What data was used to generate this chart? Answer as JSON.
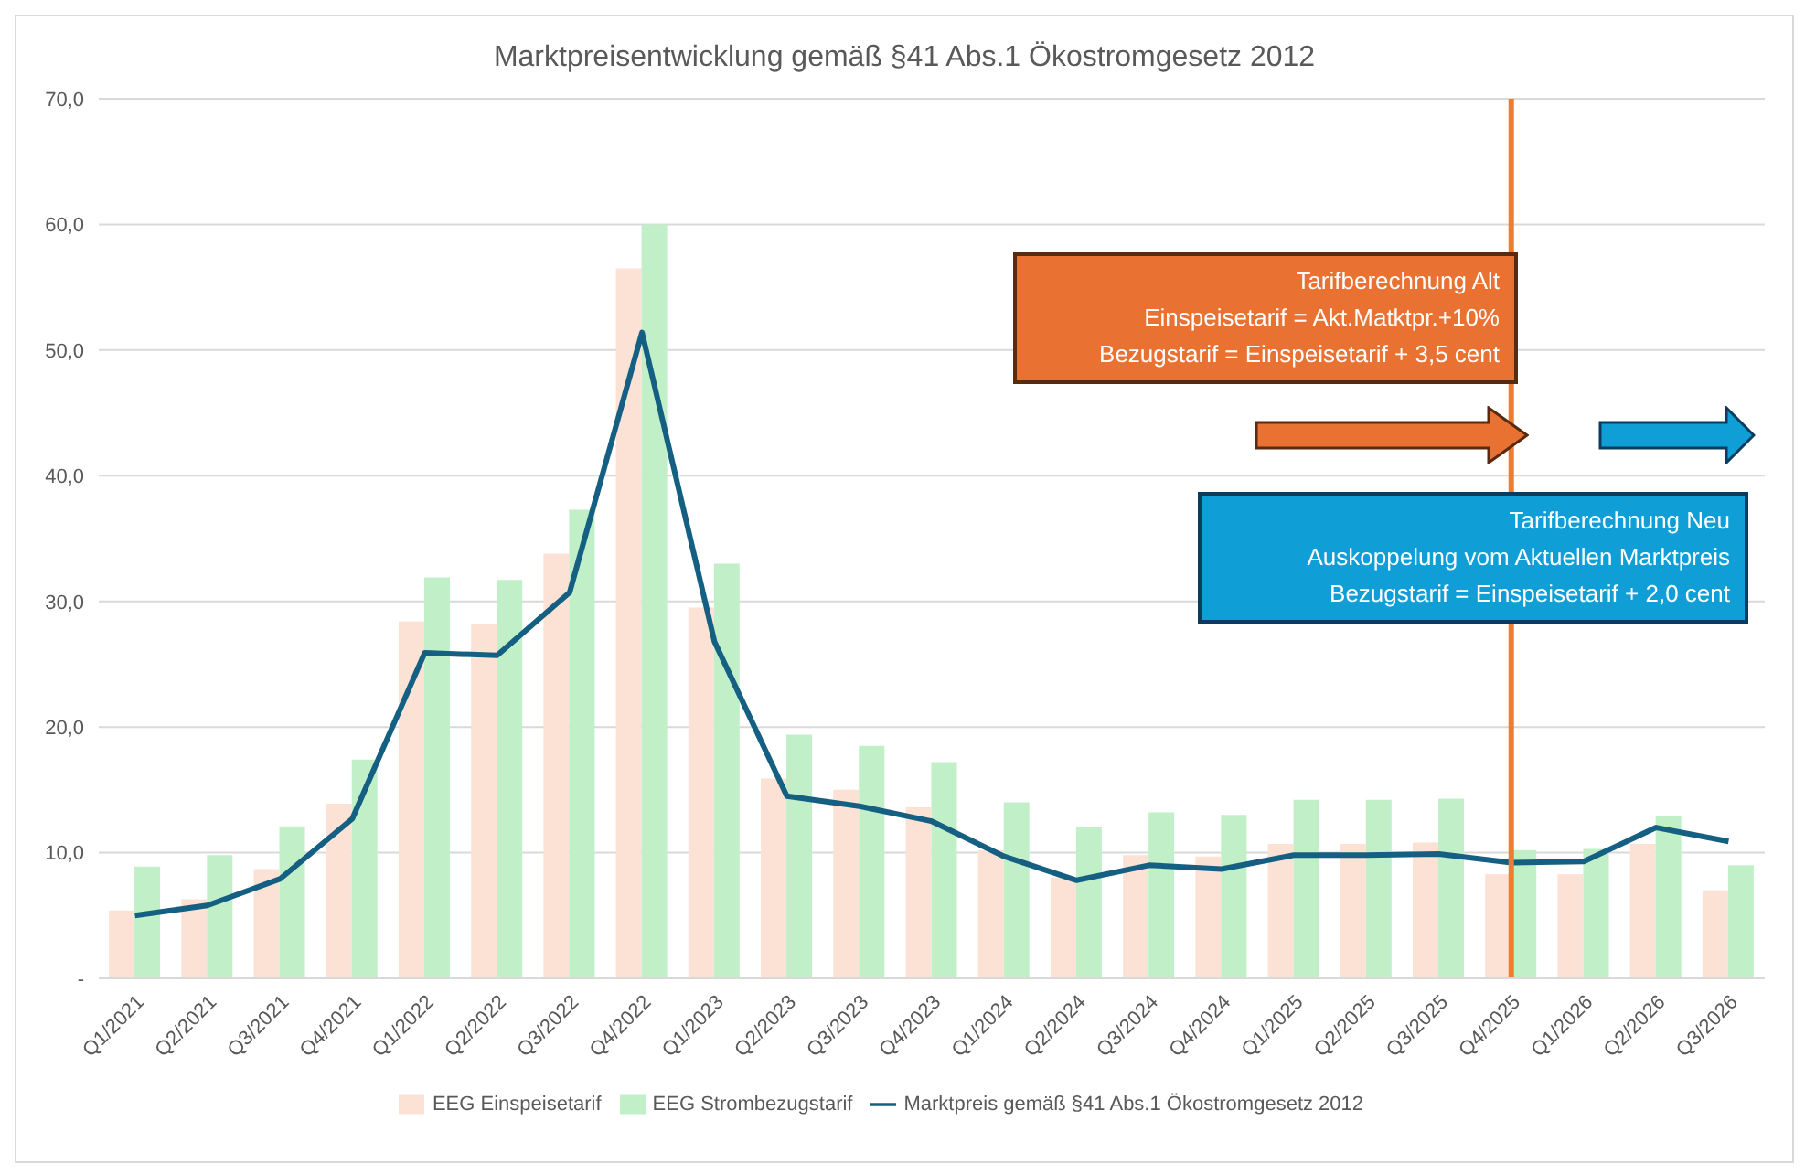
{
  "chart_data": {
    "type": "bar",
    "title": "Marktpreisentwicklung gemäß §41 Abs.1 Ökostromgesetz 2012",
    "categories": [
      "Q1/2021",
      "Q2/2021",
      "Q3/2021",
      "Q4/2021",
      "Q1/2022",
      "Q2/2022",
      "Q3/2022",
      "Q4/2022",
      "Q1/2023",
      "Q2/2023",
      "Q3/2023",
      "Q4/2023",
      "Q1/2024",
      "Q2/2024",
      "Q3/2024",
      "Q4/2024",
      "Q1/2025",
      "Q2/2025",
      "Q3/2025",
      "Q4/2025",
      "Q1/2026",
      "Q2/2026",
      "Q3/2026"
    ],
    "series": [
      {
        "name": "EEG Einspeisetarif",
        "color": "#fbe2d5",
        "values": [
          5.4,
          6.3,
          8.7,
          13.9,
          28.4,
          28.2,
          33.8,
          56.5,
          29.5,
          15.9,
          15.0,
          13.6,
          10.2,
          8.0,
          9.8,
          9.7,
          10.7,
          10.7,
          10.8,
          8.3,
          8.3,
          10.7,
          7.0
        ]
      },
      {
        "name": "EEG Strombezugstarif",
        "color": "#c1f0c8",
        "values": [
          8.9,
          9.8,
          12.1,
          17.4,
          31.9,
          31.7,
          37.3,
          60.0,
          33.0,
          19.4,
          18.5,
          17.2,
          14.0,
          12.0,
          13.2,
          13.0,
          14.2,
          14.2,
          14.3,
          10.2,
          10.3,
          12.9,
          9.0
        ]
      },
      {
        "name": "Marktpreis gemäß §41 Abs.1 Ökostromgesetz 2012",
        "color": "#156082",
        "type": "line",
        "values": [
          5.0,
          5.8,
          7.9,
          12.7,
          25.9,
          25.7,
          30.7,
          51.4,
          26.8,
          14.5,
          13.7,
          12.5,
          9.7,
          7.8,
          9.0,
          8.7,
          9.8,
          9.8,
          9.9,
          9.2,
          9.3,
          12.0,
          10.9
        ]
      }
    ],
    "ylim": [
      0,
      70
    ],
    "yticks": [
      {
        "value": 0,
        "label": "-"
      },
      {
        "value": 10,
        "label": "10,0"
      },
      {
        "value": 20,
        "label": "20,0"
      },
      {
        "value": 30,
        "label": "30,0"
      },
      {
        "value": 40,
        "label": "40,0"
      },
      {
        "value": 50,
        "label": "50,0"
      },
      {
        "value": 60,
        "label": "60,0"
      },
      {
        "value": 70,
        "label": "70,0"
      }
    ],
    "grid": "y",
    "legend": "bottom",
    "marker": "none",
    "line_style": "solid",
    "ref_lines": [
      {
        "axis": "x",
        "value": "Q4/2025",
        "color": "#ed7d31",
        "line_style": "solid"
      }
    ],
    "annotations": [
      "Tarifberechnung Alt\nEinspeisetarif = Akt.Matktpr.+10%\nBezugstarif = Einspeisetarif + 3,5 cent",
      "Tarifberechnung Neu\nAuskoppelung vom Aktuellen Marktpreis\nBezugstarif = Einspeisetarif + 2,0 cent"
    ]
  }
}
